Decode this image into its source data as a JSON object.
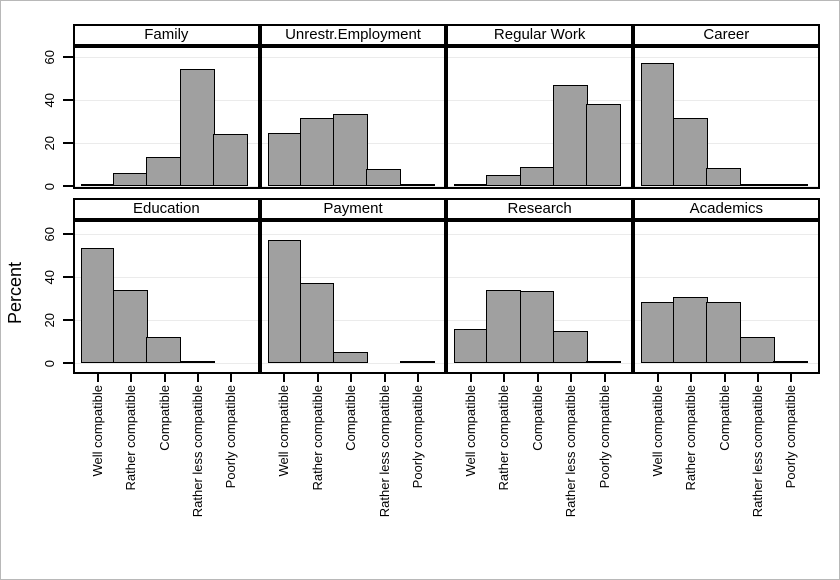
{
  "chart_data": {
    "type": "bar",
    "layout": "faceted-histogram-grid-4x2",
    "title": "",
    "ylabel": "Percent",
    "xlabel": "",
    "y_ticks": [
      0,
      20,
      40,
      60
    ],
    "ylim": [
      0,
      65
    ],
    "grid": true,
    "legend": "none",
    "categories": [
      "Well compatible",
      "Rather compatible",
      "Compatible",
      "Rather less compatible",
      "Poorly compatible"
    ],
    "panels": [
      {
        "title": "Family",
        "values": [
          0.5,
          6,
          13.5,
          54.5,
          24
        ]
      },
      {
        "title": "Unrestr.Employment",
        "values": [
          24.5,
          31.5,
          33.5,
          8,
          0.5
        ]
      },
      {
        "title": "Regular Work",
        "values": [
          0.5,
          5,
          9,
          47,
          38
        ]
      },
      {
        "title": "Career",
        "values": [
          57,
          31.5,
          8.5,
          0.5,
          0.5
        ]
      },
      {
        "title": "Education",
        "values": [
          53.5,
          34,
          12,
          0.5,
          0
        ]
      },
      {
        "title": "Payment",
        "values": [
          57,
          37,
          5,
          0,
          1
        ]
      },
      {
        "title": "Research",
        "values": [
          16,
          34,
          33.5,
          15,
          1
        ]
      },
      {
        "title": "Academics",
        "values": [
          28.5,
          30.5,
          28.5,
          12,
          0.5
        ]
      }
    ],
    "colors": {
      "bar_fill": "#a0a0a0",
      "bar_stroke": "#000000",
      "grid_line": "#ebebeb",
      "frame": "#000000",
      "text": "#000000",
      "background": "#ffffff"
    }
  }
}
